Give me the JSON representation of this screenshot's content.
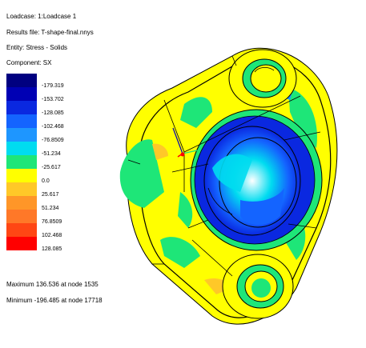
{
  "header": {
    "loadcase": "Loadcase: 1:Loadcase 1",
    "results_file": "Results file: T-shape-final.nnys",
    "entity": "Entity: Stress - Solids",
    "component": "Component: SX"
  },
  "legend": {
    "colors": [
      "#000080",
      "#0000b4",
      "#0a28e0",
      "#1464ff",
      "#1e96ff",
      "#00dcf0",
      "#1ee678",
      "#ffff00",
      "#ffc828",
      "#ff9628",
      "#ff7828",
      "#ff4614",
      "#ff0000"
    ],
    "labels": [
      "-179.319",
      "-153.702",
      "-128.085",
      "-102.468",
      "-76.8509",
      "-51.234",
      "-25.617",
      "0.0",
      "25.617",
      "51.234",
      "76.8509",
      "102.468",
      "128.085"
    ]
  },
  "summary": {
    "maximum": "Maximum 136.536 at node 1535",
    "minimum": "Minimum -196.485 at node 17718"
  },
  "model": {
    "outline_color": "#000000",
    "base_color": "#ffff00",
    "compression_color": "#1464ff",
    "low_stress_color": "#1ee678",
    "hole_color": "#00dcf0"
  }
}
